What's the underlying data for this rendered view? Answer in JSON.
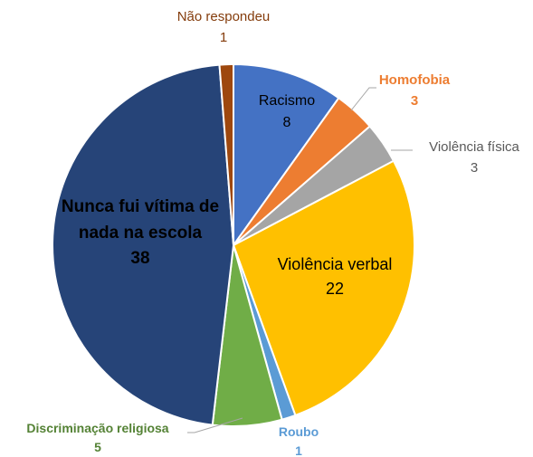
{
  "chart_data": {
    "type": "pie",
    "categories": [
      "Racismo",
      "Homofobia",
      "Violência física",
      "Violência verbal",
      "Roubo",
      "Discriminação  religiosa",
      "Nunca fui vítima de nada na escola",
      "Não respondeu"
    ],
    "values": [
      8,
      3,
      3,
      22,
      1,
      5,
      38,
      1
    ],
    "colors": [
      "#4472c4",
      "#ed7d31",
      "#a5a5a5",
      "#ffc000",
      "#5b9bd5",
      "#70ad47",
      "#264478",
      "#9e480e"
    ]
  }
}
